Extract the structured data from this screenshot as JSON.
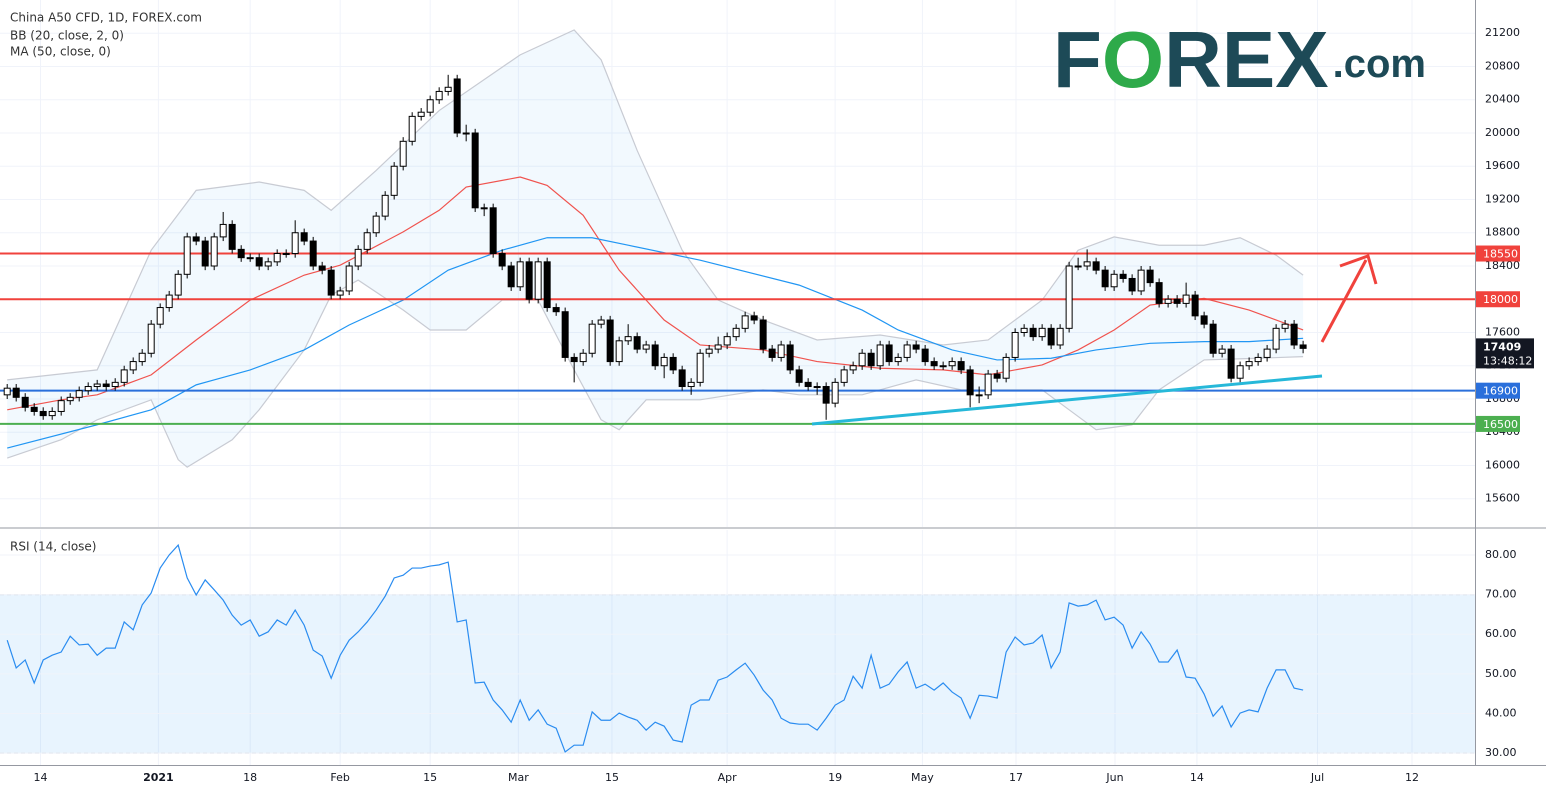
{
  "chart_data": [
    {
      "type": "candlestick",
      "title": "China A50 CFD, 1D, FOREX.com",
      "indicators": [
        "BB (20, close, 2, 0)",
        "MA (50, close, 0)"
      ],
      "logo": [
        "F",
        "O",
        "REX",
        ".com"
      ],
      "up_color": "#ffffff",
      "down_color": "#000000",
      "border_color": "#000000",
      "open": [
        16850,
        16930,
        16820,
        16700,
        16650,
        16600,
        16650,
        16780,
        16820,
        16900,
        16950,
        16980,
        16950,
        17000,
        17150,
        17250,
        17350,
        17700,
        17900,
        18050,
        18300,
        18750,
        18700,
        18400,
        18750,
        18900,
        18600,
        18500,
        18500,
        18400,
        18450,
        18550,
        18550,
        18800,
        18700,
        18400,
        18350,
        18050,
        18100,
        18400,
        18600,
        18800,
        19000,
        19250,
        19600,
        19900,
        20200,
        20250,
        20400,
        20500,
        20650,
        20000,
        20000,
        19100,
        19100,
        18550,
        18400,
        18150,
        18450,
        18000,
        18450,
        17900,
        17850,
        17300,
        17250,
        17350,
        17700,
        17750,
        17250,
        17500,
        17550,
        17400,
        17450,
        17200,
        17300,
        17150,
        16950,
        17000,
        17350,
        17400,
        17450,
        17550,
        17650,
        17800,
        17750,
        17400,
        17300,
        17450,
        17150,
        17000,
        16950,
        16950,
        16750,
        17000,
        17150,
        17200,
        17350,
        17200,
        17450,
        17250,
        17300,
        17450,
        17400,
        17250,
        17200,
        17200,
        17250,
        17150,
        16850,
        16850,
        17100,
        17050,
        17300,
        17600,
        17650,
        17550,
        17650,
        17450,
        17650,
        18400,
        18400,
        18450,
        18350,
        18150,
        18300,
        18250,
        18100,
        18350,
        18200,
        17950,
        18000,
        17950,
        18050,
        17800,
        17700,
        17350,
        17400,
        17050,
        17200,
        17250,
        17300,
        17400,
        17650,
        17700,
        17450
      ],
      "high": [
        16980,
        16980,
        16870,
        16750,
        16700,
        16700,
        16830,
        16870,
        16950,
        17000,
        17030,
        17030,
        17050,
        17200,
        17300,
        17400,
        17750,
        17950,
        18100,
        18350,
        18800,
        18800,
        18750,
        18800,
        19050,
        18950,
        18650,
        18550,
        18550,
        18500,
        18600,
        18600,
        18950,
        18850,
        18750,
        18450,
        18400,
        18150,
        18450,
        18650,
        18850,
        19050,
        19300,
        19650,
        19950,
        20250,
        20300,
        20450,
        20550,
        20700,
        20700,
        20100,
        20050,
        19150,
        19150,
        18600,
        18450,
        18500,
        18500,
        18500,
        18500,
        17950,
        17900,
        17350,
        17400,
        17750,
        17800,
        17800,
        17550,
        17700,
        17600,
        17500,
        17500,
        17350,
        17350,
        17200,
        17050,
        17400,
        17450,
        17550,
        17600,
        17700,
        17850,
        17850,
        17800,
        17450,
        17500,
        17500,
        17200,
        17050,
        17000,
        17000,
        17050,
        17200,
        17250,
        17400,
        17400,
        17500,
        17500,
        17350,
        17500,
        17500,
        17450,
        17300,
        17250,
        17300,
        17300,
        17200,
        16950,
        17150,
        17150,
        17350,
        17650,
        17700,
        17700,
        17700,
        17700,
        17700,
        18450,
        18500,
        18600,
        18500,
        18400,
        18350,
        18350,
        18300,
        18400,
        18400,
        18250,
        18050,
        18050,
        18200,
        18100,
        17850,
        17750,
        17450,
        17450,
        17250,
        17300,
        17350,
        17450,
        17700,
        17750,
        17750,
        17500
      ],
      "low": [
        16800,
        16770,
        16650,
        16600,
        16550,
        16550,
        16600,
        16730,
        16770,
        16850,
        16900,
        16900,
        16900,
        16950,
        17100,
        17200,
        17300,
        17650,
        17850,
        18000,
        18250,
        18650,
        18350,
        18350,
        18700,
        18550,
        18450,
        18450,
        18350,
        18350,
        18400,
        18500,
        18500,
        18650,
        18350,
        18300,
        18000,
        18000,
        18050,
        18350,
        18550,
        18750,
        18950,
        19200,
        19550,
        19850,
        20150,
        20200,
        20350,
        20450,
        19950,
        19900,
        19050,
        19000,
        18500,
        18350,
        18100,
        18100,
        17950,
        17950,
        17850,
        17800,
        17250,
        17000,
        17200,
        17300,
        17650,
        17200,
        17200,
        17450,
        17350,
        17350,
        17150,
        17050,
        17100,
        16900,
        16850,
        16950,
        17300,
        17350,
        17400,
        17500,
        17600,
        17700,
        17350,
        17250,
        17250,
        17100,
        16950,
        16900,
        16850,
        16550,
        16700,
        16950,
        17100,
        17150,
        17150,
        17150,
        17200,
        17200,
        17250,
        17350,
        17200,
        17150,
        17150,
        17150,
        17100,
        16700,
        16750,
        16800,
        17000,
        17000,
        17250,
        17550,
        17500,
        17500,
        17400,
        17400,
        17600,
        18350,
        18350,
        18300,
        18100,
        18100,
        18200,
        18050,
        18050,
        18150,
        17900,
        17900,
        17900,
        17900,
        17750,
        17650,
        17300,
        17300,
        17000,
        17000,
        17150,
        17200,
        17250,
        17350,
        17600,
        17400,
        17350
      ],
      "close": [
        16930,
        16820,
        16700,
        16650,
        16600,
        16650,
        16780,
        16820,
        16900,
        16950,
        16980,
        16950,
        17000,
        17150,
        17250,
        17350,
        17700,
        17900,
        18050,
        18300,
        18750,
        18700,
        18400,
        18750,
        18900,
        18600,
        18500,
        18500,
        18400,
        18450,
        18550,
        18550,
        18800,
        18700,
        18400,
        18350,
        18050,
        18100,
        18400,
        18600,
        18800,
        19000,
        19250,
        19600,
        19900,
        20200,
        20250,
        20400,
        20500,
        20550,
        20000,
        20000,
        19100,
        19100,
        18550,
        18400,
        18150,
        18450,
        18000,
        18450,
        17900,
        17850,
        17300,
        17250,
        17350,
        17700,
        17750,
        17250,
        17500,
        17550,
        17400,
        17450,
        17200,
        17300,
        17150,
        16950,
        17000,
        17350,
        17400,
        17450,
        17550,
        17650,
        17800,
        17750,
        17400,
        17300,
        17450,
        17150,
        17000,
        16950,
        16950,
        16750,
        17000,
        17150,
        17200,
        17350,
        17200,
        17450,
        17250,
        17300,
        17450,
        17400,
        17250,
        17200,
        17200,
        17250,
        17150,
        16850,
        16850,
        17100,
        17050,
        17300,
        17600,
        17650,
        17550,
        17650,
        17450,
        17650,
        18400,
        18400,
        18450,
        18350,
        18150,
        18300,
        18250,
        18100,
        18350,
        18200,
        17950,
        18000,
        17950,
        18050,
        17800,
        17700,
        17350,
        17400,
        17050,
        17200,
        17250,
        17300,
        17400,
        17650,
        17700,
        17450,
        17409
      ],
      "lines": [
        {
          "color": "#c8cbd3",
          "x": [
            0,
            10,
            16,
            21,
            28,
            33,
            36,
            41,
            48,
            57,
            63,
            66,
            70,
            75,
            79,
            84,
            90,
            97,
            104,
            109,
            115,
            119,
            123,
            128,
            133,
            137,
            141,
            144
          ],
          "values": [
            17030,
            17150,
            18590,
            19310,
            19410,
            19310,
            19070,
            19550,
            20270,
            20940,
            21240,
            20880,
            19790,
            18590,
            17990,
            17750,
            17510,
            17570,
            17450,
            17510,
            17990,
            18590,
            18750,
            18650,
            18650,
            18740,
            18530,
            18290
          ]
        },
        {
          "color": "#c8cbd3",
          "x": [
            0,
            6,
            10,
            16,
            19,
            20,
            25,
            28,
            33,
            36,
            39,
            44,
            47,
            51,
            55,
            59,
            63,
            66,
            68,
            71,
            77,
            84,
            88,
            95,
            101,
            106,
            110,
            115,
            118,
            121,
            125,
            128,
            133,
            139,
            144
          ],
          "values": [
            16090,
            16310,
            16550,
            16790,
            16070,
            15980,
            16310,
            16670,
            17390,
            18050,
            18230,
            17870,
            17630,
            17630,
            17990,
            17990,
            17150,
            16550,
            16430,
            16790,
            16790,
            16910,
            16850,
            16850,
            17030,
            16910,
            16910,
            16910,
            16670,
            16430,
            16490,
            16910,
            17270,
            17290,
            17310
          ]
        },
        {
          "color": "#f0534e",
          "x": [
            0,
            6,
            10,
            16,
            21,
            27,
            33,
            37,
            44,
            48,
            51,
            57,
            60,
            64,
            68,
            73,
            77,
            84,
            90,
            97,
            104,
            109,
            115,
            119,
            123,
            127,
            133,
            138,
            144
          ],
          "values": [
            16670,
            16790,
            16850,
            17090,
            17510,
            17990,
            18290,
            18410,
            18810,
            19070,
            19350,
            19470,
            19370,
            19010,
            18350,
            17750,
            17450,
            17390,
            17250,
            17170,
            17150,
            17090,
            17210,
            17390,
            17630,
            17930,
            18010,
            17870,
            17630
          ]
        },
        {
          "color": "#2196f3",
          "x": [
            0,
            10,
            16,
            21,
            27,
            33,
            38,
            44,
            49,
            55,
            60,
            65,
            69,
            77,
            88,
            95,
            99,
            105,
            110,
            116,
            121,
            127,
            133,
            138,
            144
          ],
          "values": [
            16210,
            16490,
            16670,
            16970,
            17150,
            17390,
            17690,
            17990,
            18350,
            18590,
            18740,
            18740,
            18650,
            18470,
            18170,
            17870,
            17630,
            17390,
            17270,
            17290,
            17390,
            17470,
            17490,
            17490,
            17530
          ]
        }
      ],
      "bb_fill_color": "rgba(33,150,243,0.06)",
      "levels": [
        {
          "value": 18550,
          "color": "#f0423c"
        },
        {
          "value": 18000,
          "color": "#f0423c"
        },
        {
          "value": 16900,
          "color": "#2a6fdb"
        },
        {
          "value": 16500,
          "color": "#4caf50"
        }
      ],
      "last": {
        "value": 17409,
        "countdown": "13:48:12"
      },
      "xlim": [
        -0.8,
        163.1
      ],
      "xticks": [
        {
          "value": 3.7,
          "label": "14"
        },
        {
          "value": 16.8,
          "label": "2021"
        },
        {
          "value": 27,
          "label": "18"
        },
        {
          "value": 37,
          "label": "Feb"
        },
        {
          "value": 47,
          "label": "15"
        },
        {
          "value": 56.8,
          "label": "Mar"
        },
        {
          "value": 67.2,
          "label": "15"
        },
        {
          "value": 80,
          "label": "Apr"
        },
        {
          "value": 92,
          "label": "19"
        },
        {
          "value": 101.7,
          "label": "May"
        },
        {
          "value": 112.1,
          "label": "17"
        },
        {
          "value": 123.1,
          "label": "Jun"
        },
        {
          "value": 132.2,
          "label": "14"
        },
        {
          "value": 145.6,
          "label": "Jul"
        },
        {
          "value": 156.1,
          "label": "12"
        }
      ],
      "ylim": [
        15260,
        21600
      ],
      "yticks": [
        15600,
        16000,
        16400,
        16800,
        17200,
        17600,
        18000,
        18400,
        18800,
        19200,
        19600,
        20000,
        20400,
        20800,
        21200
      ],
      "grid": true
    },
    {
      "type": "line",
      "title": "RSI (14, close)",
      "color": "#2a8cf0",
      "values": [
        58.5,
        51.5,
        53.5,
        47.7,
        53.5,
        54.7,
        55.5,
        59.5,
        57.3,
        57.5,
        54.7,
        56.5,
        56.5,
        63.1,
        61.1,
        67.4,
        70.4,
        76.7,
        80.0,
        82.5,
        74.2,
        69.9,
        73.7,
        71.2,
        68.6,
        64.8,
        62.3,
        63.6,
        59.5,
        60.6,
        63.6,
        62.3,
        66.1,
        62.3,
        56.0,
        54.5,
        48.9,
        54.7,
        58.5,
        60.6,
        63.1,
        66.1,
        69.6,
        74.2,
        74.9,
        76.7,
        76.7,
        77.2,
        77.5,
        78.2,
        63.1,
        63.6,
        47.7,
        47.9,
        43.4,
        40.9,
        37.8,
        43.4,
        38.3,
        40.9,
        37.3,
        36.3,
        30.3,
        32.0,
        32.0,
        40.4,
        38.3,
        38.3,
        40.1,
        39.1,
        38.3,
        35.8,
        37.8,
        36.8,
        33.3,
        32.8,
        42.1,
        43.4,
        43.4,
        48.4,
        49.2,
        51.0,
        52.7,
        49.7,
        45.9,
        43.4,
        38.8,
        37.6,
        37.3,
        37.3,
        35.8,
        38.8,
        42.1,
        43.4,
        49.4,
        46.4,
        54.7,
        46.4,
        47.4,
        50.5,
        53.0,
        46.4,
        47.4,
        45.9,
        47.7,
        45.4,
        43.9,
        38.8,
        44.6,
        44.4,
        43.9,
        55.5,
        59.3,
        57.3,
        57.8,
        59.8,
        51.5,
        55.5,
        67.9,
        67.1,
        67.4,
        68.6,
        63.6,
        64.3,
        62.3,
        56.5,
        60.6,
        57.5,
        53.0,
        53.0,
        56.0,
        49.2,
        48.9,
        44.9,
        39.3,
        41.9,
        36.6,
        40.1,
        40.9,
        40.4,
        46.4,
        51.0,
        51.0,
        46.4,
        45.9
      ],
      "band": [
        30,
        70
      ],
      "band_color": "rgba(33,150,243,0.1)",
      "ylim": [
        27,
        86.3
      ],
      "yticks": [
        {
          "value": 30,
          "label": "30.00"
        },
        {
          "value": 40,
          "label": "40.00"
        },
        {
          "value": 50,
          "label": "50.00"
        },
        {
          "value": 60,
          "label": "60.00"
        },
        {
          "value": 70,
          "label": "70.00"
        },
        {
          "value": 80,
          "label": "80.00"
        }
      ],
      "grid": true
    }
  ]
}
